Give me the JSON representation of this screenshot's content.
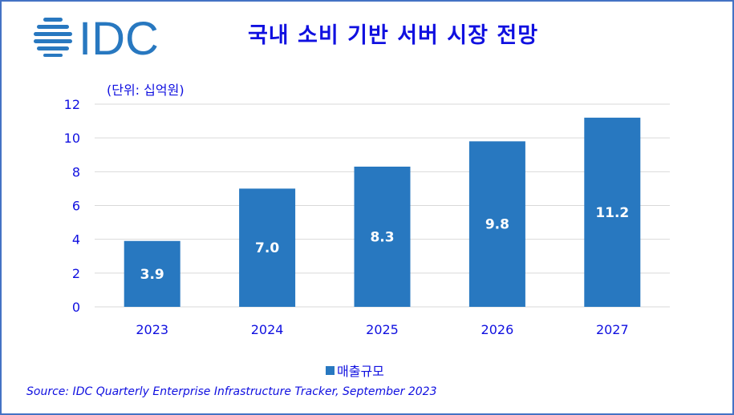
{
  "title": "국내 소비 기반 서버 시장 전망",
  "logo_text": "IDC",
  "unit_label": "(단위: 십억원)",
  "source": "Source: IDC Quarterly Enterprise Infrastructure Tracker, September 2023",
  "colors": {
    "bar": "#2878c0",
    "text": "#1010e0",
    "grid": "#d9d9d9",
    "border": "#4472c4"
  },
  "chart_data": {
    "type": "bar",
    "title": "국내 소비 기반 서버 시장 전망",
    "categories": [
      "2023",
      "2024",
      "2025",
      "2026",
      "2027"
    ],
    "series": [
      {
        "name": "매출규모",
        "values": [
          3.9,
          7.0,
          8.3,
          9.8,
          11.2
        ]
      }
    ],
    "data_labels": [
      "3.9",
      "7.0",
      "8.3",
      "9.8",
      "11.2"
    ],
    "ylabel": "(단위: 십억원)",
    "ylim": [
      0,
      12
    ],
    "yticks": [
      0,
      2,
      4,
      6,
      8,
      10,
      12
    ],
    "grid": true,
    "legend_position": "bottom"
  }
}
